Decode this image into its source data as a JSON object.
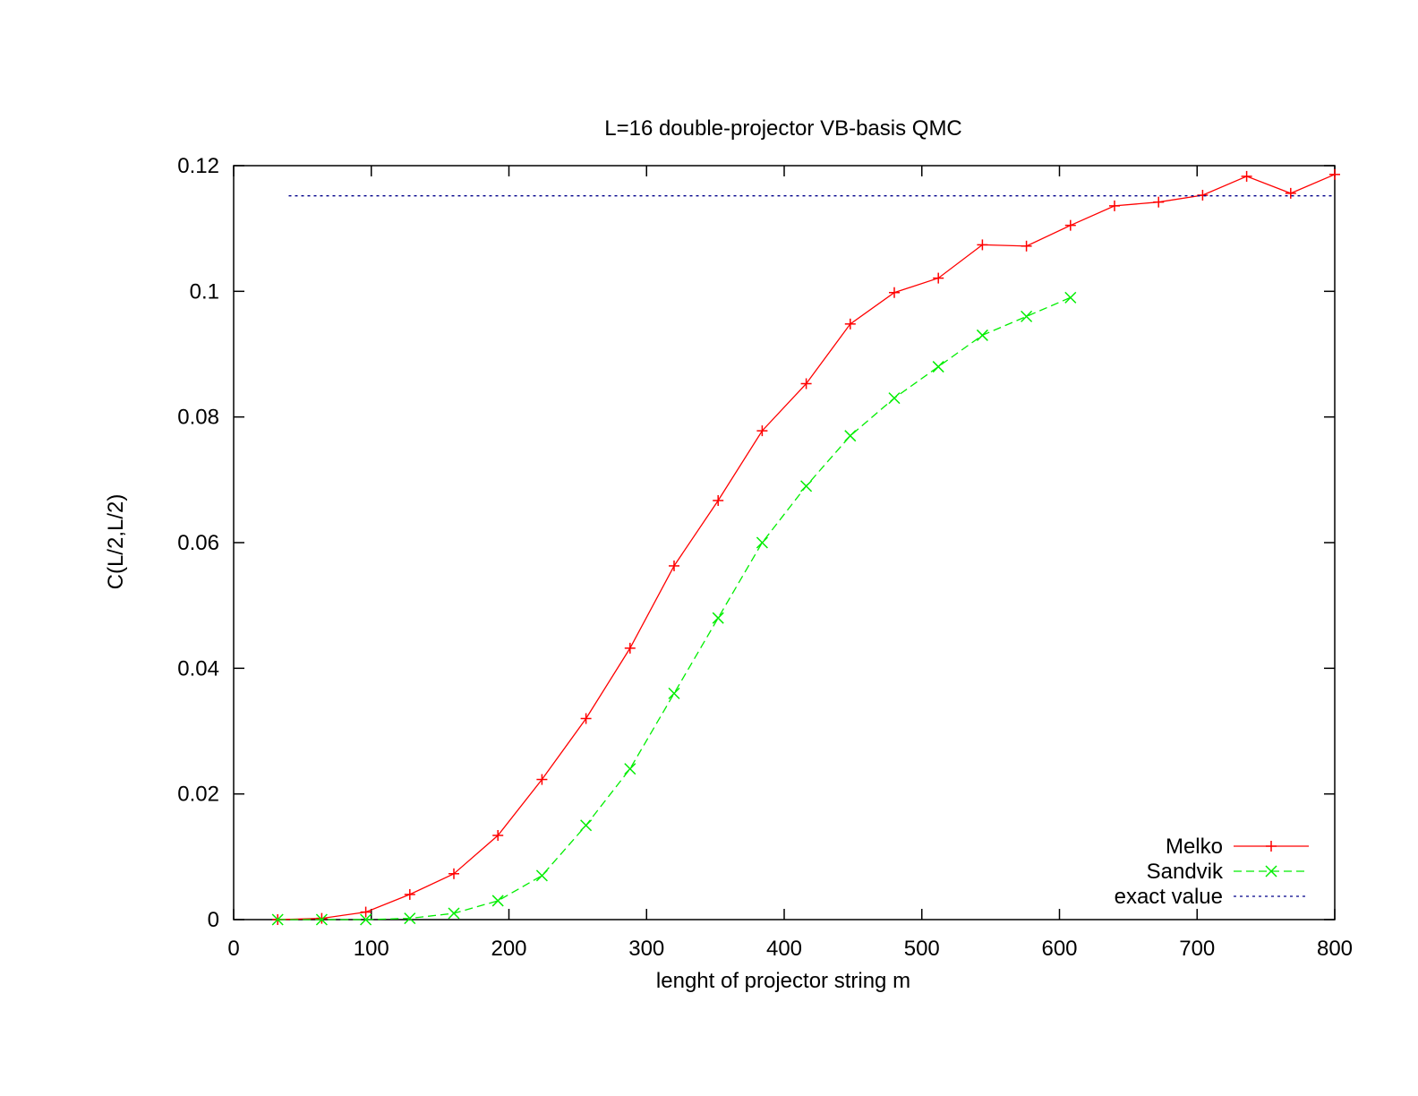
{
  "chart_data": {
    "type": "line",
    "title": "L=16 double-projector VB-basis QMC",
    "xlabel": "lenght of projector string m",
    "ylabel": "C(L/2,L/2)",
    "xlim": [
      0,
      800
    ],
    "ylim": [
      0,
      0.12
    ],
    "xticks": [
      "0",
      "100",
      "200",
      "300",
      "400",
      "500",
      "600",
      "700",
      "800"
    ],
    "yticks": [
      "0",
      "0.02",
      "0.04",
      "0.06",
      "0.08",
      "0.1",
      "0.12"
    ],
    "grid": false,
    "legend_position": "bottom-right",
    "series": [
      {
        "name": "Melko",
        "color": "#ff0000",
        "style": "solid",
        "marker": "plus",
        "x": [
          32,
          64,
          96,
          128,
          160,
          192,
          224,
          256,
          288,
          320,
          352,
          384,
          416,
          448,
          480,
          512,
          544,
          576,
          608,
          640,
          672,
          704,
          736,
          768,
          800
        ],
        "y": [
          0.0,
          0.0002,
          0.0012,
          0.004,
          0.0073,
          0.0134,
          0.0223,
          0.032,
          0.0432,
          0.0563,
          0.0667,
          0.0778,
          0.0853,
          0.0948,
          0.0998,
          0.1021,
          0.1074,
          0.1072,
          0.1105,
          0.1136,
          0.1142,
          0.1153,
          0.1183,
          0.1156,
          0.1186
        ]
      },
      {
        "name": "Sandvik",
        "color": "#00ee00",
        "style": "dashed",
        "marker": "cross",
        "x": [
          32,
          64,
          96,
          128,
          160,
          192,
          224,
          256,
          288,
          320,
          352,
          384,
          416,
          448,
          480,
          512,
          544,
          576,
          608
        ],
        "y": [
          0.0,
          0.0,
          0.0,
          0.0002,
          0.001,
          0.003,
          0.007,
          0.015,
          0.024,
          0.036,
          0.048,
          0.06,
          0.069,
          0.077,
          0.083,
          0.088,
          0.093,
          0.096,
          0.099
        ]
      },
      {
        "name": "exact value",
        "color": "#00008b",
        "style": "dotted",
        "marker": "none",
        "x": [
          40,
          800
        ],
        "y": [
          0.1152,
          0.1152
        ]
      }
    ]
  }
}
